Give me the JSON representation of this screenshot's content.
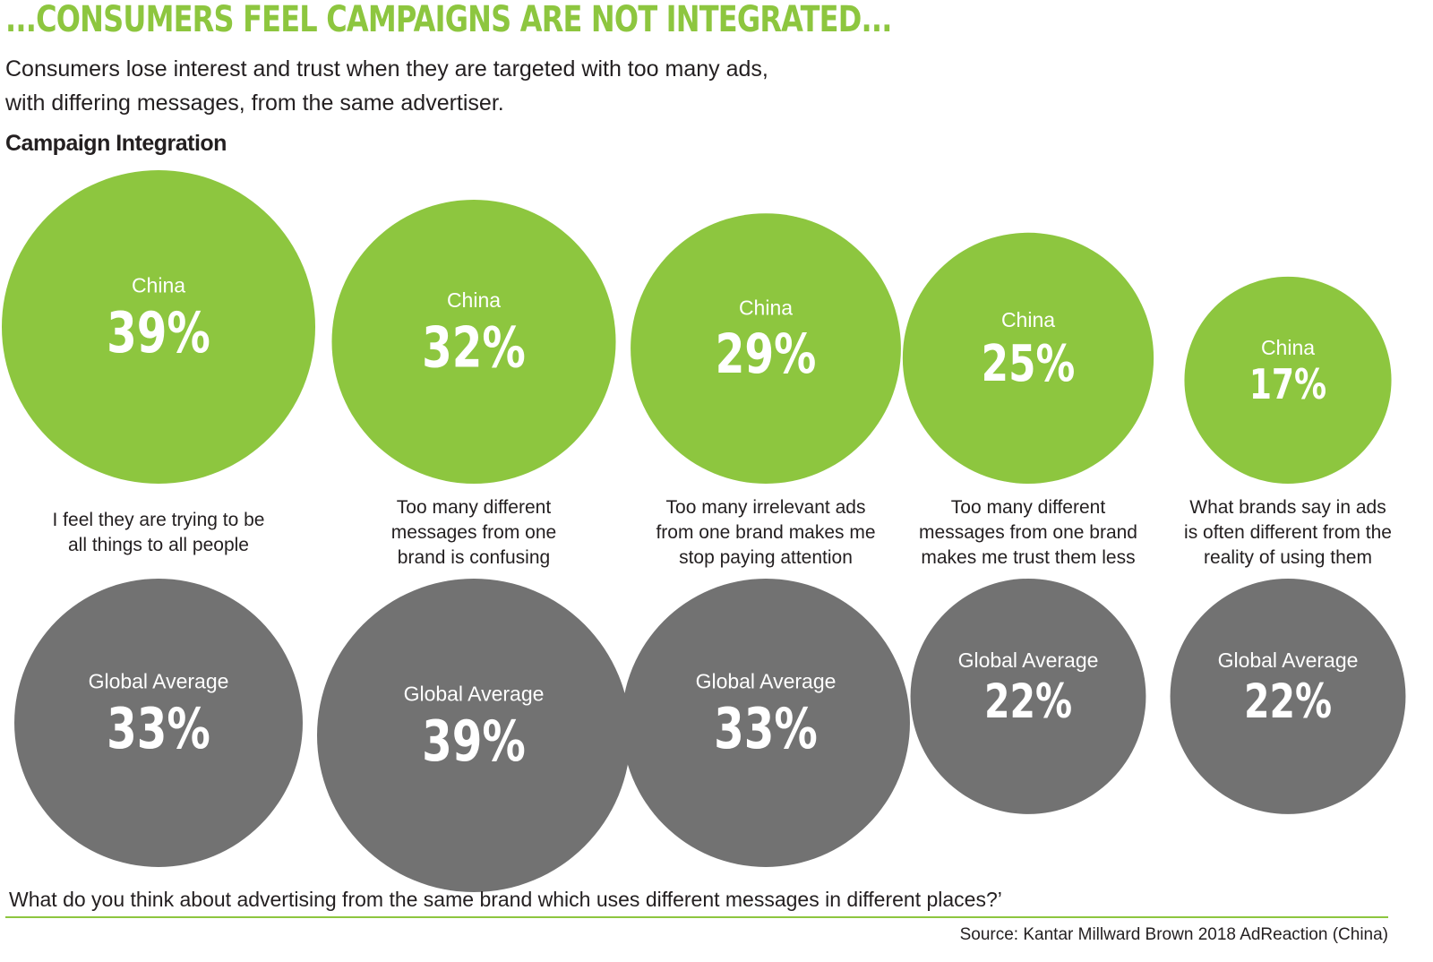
{
  "headline": "...CONSUMERS FEEL CAMPAIGNS ARE NOT INTEGRATED...",
  "subtitle_line1": "Consumers lose interest and trust when they are targeted with too many ads,",
  "subtitle_line2": "with differing messages, from the same advertiser.",
  "colors": {
    "accent": "#8dc63f",
    "global": "#727272",
    "text": "#231f20"
  },
  "chart_data": {
    "type": "bubble",
    "title": "Campaign Integration",
    "series": [
      {
        "name": "China",
        "values": [
          39,
          32,
          29,
          25,
          17
        ],
        "color": "#8dc63f"
      },
      {
        "name": "Global Average",
        "values": [
          33,
          39,
          33,
          22,
          22
        ],
        "color": "#727272"
      }
    ],
    "categories": [
      [
        "I feel they are trying to be",
        "all things to all people"
      ],
      [
        "Too many different",
        "messages from one",
        "brand is confusing"
      ],
      [
        "Too many irrelevant ads",
        "from one brand makes me",
        "stop paying attention"
      ],
      [
        "Too many different",
        "messages from one brand",
        "makes me trust them less"
      ],
      [
        "What brands say in ads",
        "is often different from the",
        "reality of using them"
      ]
    ],
    "value_labels": {
      "china": [
        "39%",
        "32%",
        "29%",
        "25%",
        "17%"
      ],
      "global": [
        "33%",
        "39%",
        "33%",
        "22%",
        "22%"
      ]
    }
  },
  "question": "What do you think about advertising from the same brand which uses different messages in different places?’",
  "source": "Source: Kantar Millward Brown 2018 AdReaction (China)"
}
